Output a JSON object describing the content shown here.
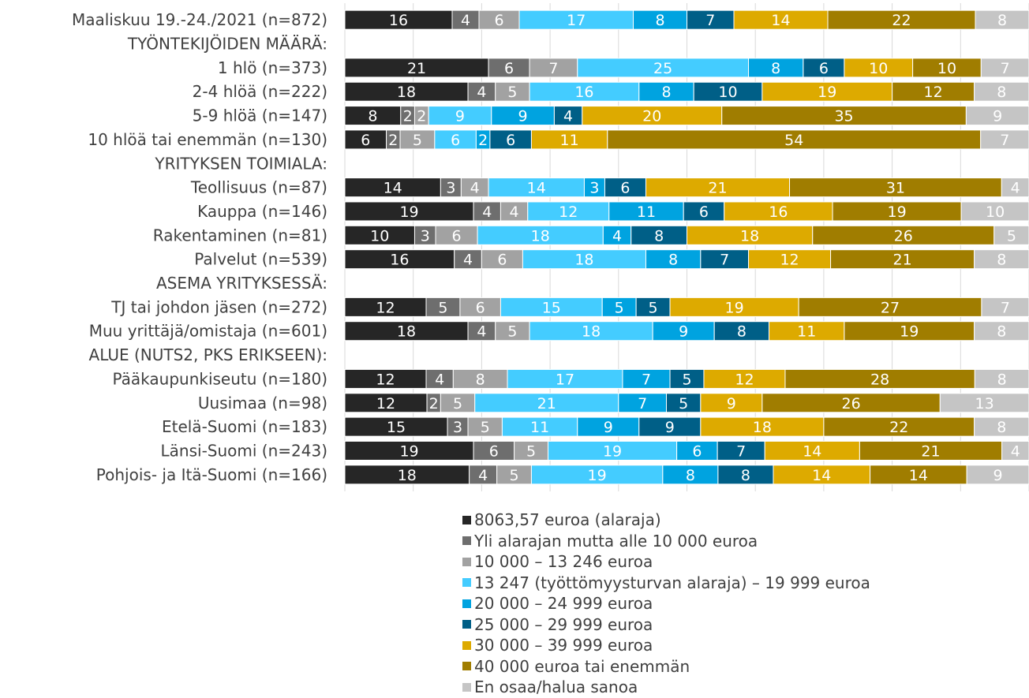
{
  "chart_data": {
    "type": "bar",
    "orientation": "horizontal",
    "stacked": true,
    "percent": true,
    "title": "",
    "xlabel": "",
    "ylabel": "",
    "xlim": [
      0,
      100
    ],
    "grid": true,
    "legend_position": "bottom",
    "colors": [
      "#262626",
      "#6E6E6E",
      "#A2A2A2",
      "#44CCFF",
      "#00A3E0",
      "#005F87",
      "#DDAA00",
      "#A07D00",
      "#C5C5C5"
    ],
    "label_colors": [
      "#ffffff",
      "#ffffff",
      "#ffffff",
      "#ffffff",
      "#ffffff",
      "#ffffff",
      "#ffffff",
      "#ffffff",
      "#ffffff"
    ],
    "series_names": [
      "8063,57 euroa (alaraja)",
      "Yli alarajan mutta alle 10 000 euroa",
      "10 000 – 13 246 euroa",
      "13 247 (työttömyysturvan alaraja) – 19 999 euroa",
      "20 000 – 24 999 euroa",
      "25 000 – 29 999 euroa",
      "30 000 – 39 999 euroa",
      "40 000 euroa tai enemmän",
      "En osaa/halua sanoa"
    ],
    "rows": [
      {
        "label": "Maaliskuu 19.-24./2021 (n=872)",
        "values": [
          16,
          4,
          6,
          17,
          8,
          7,
          14,
          22,
          8
        ]
      },
      {
        "label": "TYÖNTEKIJÖIDEN MÄÄRÄ:",
        "header": true
      },
      {
        "label": "1 hlö (n=373)",
        "values": [
          21,
          6,
          7,
          25,
          8,
          6,
          10,
          10,
          7
        ]
      },
      {
        "label": "2-4 hlöä (n=222)",
        "values": [
          18,
          4,
          5,
          16,
          8,
          10,
          19,
          12,
          8
        ]
      },
      {
        "label": "5-9 hlöä (n=147)",
        "values": [
          8,
          2,
          2,
          9,
          9,
          4,
          20,
          35,
          9
        ]
      },
      {
        "label": "10 hlöä tai enemmän (n=130)",
        "values": [
          6,
          2,
          5,
          6,
          2,
          6,
          11,
          54,
          7
        ]
      },
      {
        "label": "YRITYKSEN TOIMIALA:",
        "header": true
      },
      {
        "label": "Teollisuus (n=87)",
        "values": [
          14,
          3,
          4,
          14,
          3,
          6,
          21,
          31,
          4
        ]
      },
      {
        "label": "Kauppa (n=146)",
        "values": [
          19,
          4,
          4,
          12,
          11,
          6,
          16,
          19,
          10
        ]
      },
      {
        "label": "Rakentaminen (n=81)",
        "values": [
          10,
          3,
          6,
          18,
          4,
          8,
          18,
          26,
          5
        ]
      },
      {
        "label": "Palvelut (n=539)",
        "values": [
          16,
          4,
          6,
          18,
          8,
          7,
          12,
          21,
          8
        ]
      },
      {
        "label": "ASEMA YRITYKSESSÄ:",
        "header": true
      },
      {
        "label": "TJ tai johdon jäsen (n=272)",
        "values": [
          12,
          5,
          6,
          15,
          5,
          5,
          19,
          27,
          7
        ]
      },
      {
        "label": "Muu yrittäjä/omistaja (n=601)",
        "values": [
          18,
          4,
          5,
          18,
          9,
          8,
          11,
          19,
          8
        ]
      },
      {
        "label": "ALUE (NUTS2, PKS ERIKSEEN):",
        "header": true
      },
      {
        "label": "Pääkaupunkiseutu (n=180)",
        "values": [
          12,
          4,
          8,
          17,
          7,
          5,
          12,
          28,
          8
        ]
      },
      {
        "label": "Uusimaa (n=98)",
        "values": [
          12,
          2,
          5,
          21,
          7,
          5,
          9,
          26,
          13
        ]
      },
      {
        "label": "Etelä-Suomi (n=183)",
        "values": [
          15,
          3,
          5,
          11,
          9,
          9,
          18,
          22,
          8
        ]
      },
      {
        "label": "Länsi-Suomi (n=243)",
        "values": [
          19,
          6,
          5,
          19,
          6,
          7,
          14,
          21,
          4
        ]
      },
      {
        "label": "Pohjois- ja Itä-Suomi (n=166)",
        "values": [
          18,
          4,
          5,
          19,
          8,
          8,
          14,
          14,
          9
        ]
      }
    ]
  }
}
